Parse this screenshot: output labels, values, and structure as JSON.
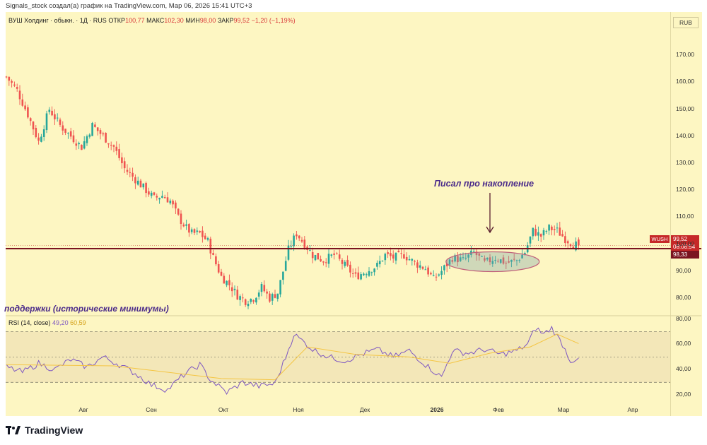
{
  "attribution": "Signals_stock создал(а) график на TradingView.com, Мар 06, 2026 15:41 UTC+3",
  "legend": {
    "symbol": "ВУШ Холдинг · обыкн. · 1Д · RUS",
    "open_label": "ОТКР",
    "open": "100,77",
    "high_label": "МАКС",
    "high": "102,30",
    "low_label": "МИН",
    "low": "98,00",
    "close_label": "ЗАКР",
    "close": "99,52",
    "change": "−1,20 (−1,19%)"
  },
  "currency": "RUB",
  "price_tag": {
    "ticker": "WUSH",
    "price": "99,52",
    "countdown": "08:08:54",
    "level": "98,33"
  },
  "annotation": "Писал про накопление",
  "support_label": "поддержки (исторические минимумы)",
  "rsi_legend": {
    "name": "RSI (14, close)",
    "rsi": "49,20",
    "ma": "60,59"
  },
  "logo_text": "TradingView",
  "colors": {
    "background": "#fdf6c2",
    "up": "#26a69a",
    "down": "#ef5350",
    "level": "#7a1420",
    "rsi": "#7e57c2",
    "rsi_ma": "#f4c542",
    "annotation": "#4a2a8a"
  },
  "chart_data": [
    {
      "type": "candlestick",
      "x_axis_labels": [
        "Авг",
        "Сен",
        "Окт",
        "Ноя",
        "Дек",
        "2026",
        "Фев",
        "Мар",
        "Апр"
      ],
      "y_ticks": [
        80,
        90,
        100,
        110,
        120,
        130,
        140,
        150,
        160,
        170
      ],
      "y_tick_labels": [
        "80,00",
        "90,00",
        "100,00",
        "110,00",
        "120,00",
        "130,00",
        "140,00",
        "150,00",
        "160,00",
        "170,00"
      ],
      "ylim": [
        74,
        180
      ],
      "horizontal_level": 98.33,
      "last_price": 99.52,
      "close_path": [
        {
          "d": 0,
          "c": 162
        },
        {
          "d": 4,
          "c": 157
        },
        {
          "d": 8,
          "c": 148
        },
        {
          "d": 12,
          "c": 138
        },
        {
          "d": 16,
          "c": 150
        },
        {
          "d": 20,
          "c": 144
        },
        {
          "d": 24,
          "c": 140
        },
        {
          "d": 28,
          "c": 136
        },
        {
          "d": 32,
          "c": 144
        },
        {
          "d": 36,
          "c": 140
        },
        {
          "d": 40,
          "c": 136
        },
        {
          "d": 44,
          "c": 128
        },
        {
          "d": 48,
          "c": 124
        },
        {
          "d": 52,
          "c": 120
        },
        {
          "d": 55,
          "c": 117
        },
        {
          "d": 58,
          "c": 118
        },
        {
          "d": 61,
          "c": 116
        },
        {
          "d": 64,
          "c": 110
        },
        {
          "d": 67,
          "c": 106
        },
        {
          "d": 69,
          "c": 104
        },
        {
          "d": 72,
          "c": 104
        },
        {
          "d": 75,
          "c": 101
        },
        {
          "d": 77,
          "c": 95
        },
        {
          "d": 80,
          "c": 88
        },
        {
          "d": 83,
          "c": 85
        },
        {
          "d": 86,
          "c": 81
        },
        {
          "d": 89,
          "c": 79
        },
        {
          "d": 92,
          "c": 80
        },
        {
          "d": 95,
          "c": 84
        },
        {
          "d": 98,
          "c": 80
        },
        {
          "d": 101,
          "c": 82
        },
        {
          "d": 103,
          "c": 90
        },
        {
          "d": 105,
          "c": 98
        },
        {
          "d": 108,
          "c": 104
        },
        {
          "d": 111,
          "c": 100
        },
        {
          "d": 114,
          "c": 96
        },
        {
          "d": 118,
          "c": 94
        },
        {
          "d": 122,
          "c": 96
        },
        {
          "d": 126,
          "c": 92
        },
        {
          "d": 130,
          "c": 88
        },
        {
          "d": 134,
          "c": 90
        },
        {
          "d": 138,
          "c": 92
        },
        {
          "d": 141,
          "c": 96
        },
        {
          "d": 144,
          "c": 95
        },
        {
          "d": 148,
          "c": 96
        },
        {
          "d": 152,
          "c": 93
        },
        {
          "d": 156,
          "c": 91
        },
        {
          "d": 159,
          "c": 87
        },
        {
          "d": 162,
          "c": 90
        },
        {
          "d": 166,
          "c": 95
        },
        {
          "d": 170,
          "c": 94
        },
        {
          "d": 174,
          "c": 97
        },
        {
          "d": 178,
          "c": 93
        },
        {
          "d": 182,
          "c": 95
        },
        {
          "d": 186,
          "c": 93
        },
        {
          "d": 190,
          "c": 94
        },
        {
          "d": 193,
          "c": 97
        },
        {
          "d": 196,
          "c": 105
        },
        {
          "d": 199,
          "c": 103
        },
        {
          "d": 202,
          "c": 106
        },
        {
          "d": 205,
          "c": 105
        },
        {
          "d": 208,
          "c": 102
        },
        {
          "d": 211,
          "c": 100
        },
        {
          "d": 213,
          "c": 99.52
        }
      ]
    },
    {
      "type": "line",
      "name": "RSI (14, close)",
      "y_ticks": [
        20,
        40,
        60,
        80
      ],
      "y_tick_labels": [
        "20,00",
        "40,00",
        "60,00",
        "80,00"
      ],
      "bands": [
        30,
        50,
        70
      ],
      "ylim": [
        14,
        82
      ],
      "rsi_path": [
        {
          "d": 0,
          "v": 42
        },
        {
          "d": 6,
          "v": 38
        },
        {
          "d": 12,
          "v": 45
        },
        {
          "d": 18,
          "v": 40
        },
        {
          "d": 24,
          "v": 48
        },
        {
          "d": 30,
          "v": 42
        },
        {
          "d": 36,
          "v": 50
        },
        {
          "d": 42,
          "v": 44
        },
        {
          "d": 48,
          "v": 37
        },
        {
          "d": 54,
          "v": 28
        },
        {
          "d": 60,
          "v": 24
        },
        {
          "d": 66,
          "v": 36
        },
        {
          "d": 72,
          "v": 44
        },
        {
          "d": 76,
          "v": 32
        },
        {
          "d": 82,
          "v": 22
        },
        {
          "d": 88,
          "v": 30
        },
        {
          "d": 94,
          "v": 27
        },
        {
          "d": 100,
          "v": 29
        },
        {
          "d": 104,
          "v": 50
        },
        {
          "d": 107,
          "v": 68
        },
        {
          "d": 110,
          "v": 63
        },
        {
          "d": 114,
          "v": 56
        },
        {
          "d": 120,
          "v": 50
        },
        {
          "d": 126,
          "v": 47
        },
        {
          "d": 132,
          "v": 52
        },
        {
          "d": 138,
          "v": 56
        },
        {
          "d": 144,
          "v": 50
        },
        {
          "d": 150,
          "v": 55
        },
        {
          "d": 156,
          "v": 44
        },
        {
          "d": 162,
          "v": 34
        },
        {
          "d": 166,
          "v": 55
        },
        {
          "d": 172,
          "v": 53
        },
        {
          "d": 178,
          "v": 56
        },
        {
          "d": 184,
          "v": 52
        },
        {
          "d": 190,
          "v": 55
        },
        {
          "d": 194,
          "v": 60
        },
        {
          "d": 197,
          "v": 73
        },
        {
          "d": 200,
          "v": 68
        },
        {
          "d": 203,
          "v": 73
        },
        {
          "d": 207,
          "v": 60
        },
        {
          "d": 210,
          "v": 47
        },
        {
          "d": 213,
          "v": 49.2
        }
      ],
      "ma_path": [
        {
          "d": 0,
          "v": 44
        },
        {
          "d": 40,
          "v": 43
        },
        {
          "d": 80,
          "v": 33
        },
        {
          "d": 100,
          "v": 32
        },
        {
          "d": 112,
          "v": 58
        },
        {
          "d": 130,
          "v": 52
        },
        {
          "d": 150,
          "v": 50
        },
        {
          "d": 165,
          "v": 45
        },
        {
          "d": 180,
          "v": 53
        },
        {
          "d": 195,
          "v": 58
        },
        {
          "d": 205,
          "v": 68
        },
        {
          "d": 213,
          "v": 60.59
        }
      ]
    }
  ]
}
